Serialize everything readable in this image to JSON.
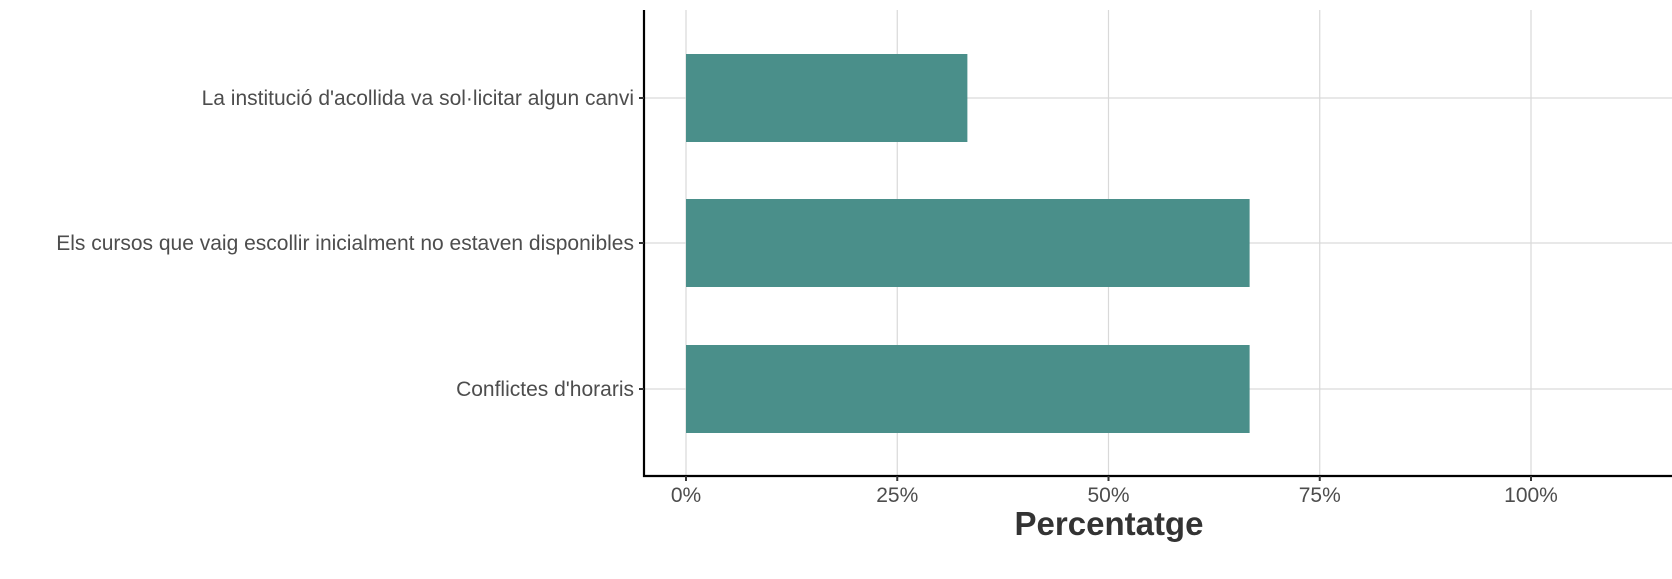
{
  "chart_data": {
    "type": "bar",
    "orientation": "horizontal",
    "categories": [
      "La institució d'acollida va sol·licitar algun canvi",
      "Els cursos que vaig escollir inicialment no estaven disponibles",
      "Conflictes d'horaris"
    ],
    "values": [
      33.3,
      66.7,
      66.7
    ],
    "xlabel": "Percentatge",
    "ylabel": "",
    "xlim": [
      0,
      100
    ],
    "x_ticks": [
      0,
      25,
      50,
      75,
      100
    ],
    "x_tick_labels": [
      "0%",
      "25%",
      "50%",
      "75%",
      "100%"
    ],
    "bar_color": "#4a8f8a",
    "grid": true,
    "legend": "none"
  }
}
